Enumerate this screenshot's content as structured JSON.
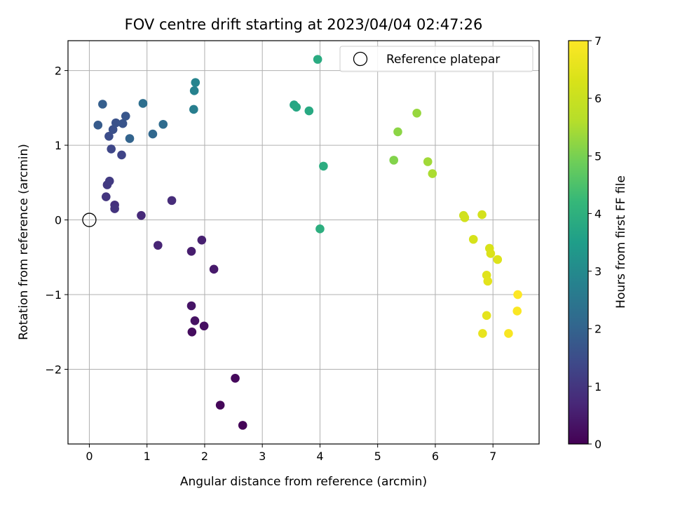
{
  "chart_data": {
    "type": "scatter",
    "title": "FOV centre drift starting at 2023/04/04 02:47:26",
    "xlabel": "Angular distance from reference (arcmin)",
    "ylabel": "Rotation from reference (arcmin)",
    "xlim": [
      -0.37,
      7.8
    ],
    "ylim": [
      -3.0,
      2.4
    ],
    "xticks": [
      0,
      1,
      2,
      3,
      4,
      5,
      6,
      7
    ],
    "xtick_labels": [
      "0",
      "1",
      "2",
      "3",
      "4",
      "5",
      "6",
      "7"
    ],
    "yticks": [
      -2,
      -1,
      0,
      1,
      2
    ],
    "ytick_labels": [
      "−2",
      "−1",
      "0",
      "1",
      "2"
    ],
    "grid": true,
    "colormap": "viridis",
    "colorbar": {
      "label": "Hours from first FF file",
      "range": [
        0,
        7
      ],
      "ticks": [
        0,
        1,
        2,
        3,
        4,
        5,
        6,
        7
      ],
      "tick_labels": [
        "0",
        "1",
        "2",
        "3",
        "4",
        "5",
        "6",
        "7"
      ]
    },
    "legend": {
      "position": "top-right",
      "entries": [
        "Reference platepar"
      ]
    },
    "reference_point": {
      "x": 0,
      "y": 0,
      "marker": "open-circle",
      "color": "#000000"
    },
    "points": [
      {
        "x": 2.66,
        "y": -2.75,
        "hours": 0.05
      },
      {
        "x": 2.27,
        "y": -2.48,
        "hours": 0.1
      },
      {
        "x": 2.53,
        "y": -2.12,
        "hours": 0.15
      },
      {
        "x": 1.78,
        "y": -1.5,
        "hours": 0.2
      },
      {
        "x": 1.99,
        "y": -1.42,
        "hours": 0.25
      },
      {
        "x": 1.83,
        "y": -1.35,
        "hours": 0.3
      },
      {
        "x": 1.77,
        "y": -1.15,
        "hours": 0.35
      },
      {
        "x": 2.16,
        "y": -0.66,
        "hours": 0.45
      },
      {
        "x": 1.77,
        "y": -0.42,
        "hours": 0.5
      },
      {
        "x": 1.95,
        "y": -0.27,
        "hours": 0.55
      },
      {
        "x": 1.19,
        "y": -0.34,
        "hours": 0.65
      },
      {
        "x": 0.9,
        "y": 0.06,
        "hours": 0.75
      },
      {
        "x": 1.43,
        "y": 0.26,
        "hours": 0.8
      },
      {
        "x": 0.44,
        "y": 0.2,
        "hours": 0.9
      },
      {
        "x": 0.44,
        "y": 0.15,
        "hours": 0.95
      },
      {
        "x": 0.29,
        "y": 0.31,
        "hours": 1.0
      },
      {
        "x": 0.31,
        "y": 0.47,
        "hours": 1.05
      },
      {
        "x": 0.35,
        "y": 0.52,
        "hours": 1.1
      },
      {
        "x": 0.56,
        "y": 0.87,
        "hours": 1.3
      },
      {
        "x": 0.38,
        "y": 0.95,
        "hours": 1.35
      },
      {
        "x": 0.34,
        "y": 1.12,
        "hours": 1.5
      },
      {
        "x": 0.41,
        "y": 1.21,
        "hours": 1.55
      },
      {
        "x": 0.46,
        "y": 1.3,
        "hours": 1.6
      },
      {
        "x": 0.58,
        "y": 1.29,
        "hours": 1.65
      },
      {
        "x": 0.63,
        "y": 1.39,
        "hours": 1.7
      },
      {
        "x": 0.15,
        "y": 1.27,
        "hours": 1.8
      },
      {
        "x": 0.23,
        "y": 1.55,
        "hours": 1.9
      },
      {
        "x": 0.7,
        "y": 1.09,
        "hours": 2.0
      },
      {
        "x": 1.1,
        "y": 1.15,
        "hours": 2.1
      },
      {
        "x": 1.28,
        "y": 1.28,
        "hours": 2.2
      },
      {
        "x": 0.93,
        "y": 1.56,
        "hours": 2.3
      },
      {
        "x": 1.81,
        "y": 1.48,
        "hours": 2.7
      },
      {
        "x": 1.82,
        "y": 1.73,
        "hours": 2.8
      },
      {
        "x": 1.84,
        "y": 1.84,
        "hours": 2.85
      },
      {
        "x": 3.55,
        "y": 1.54,
        "hours": 3.7
      },
      {
        "x": 3.59,
        "y": 1.51,
        "hours": 3.75
      },
      {
        "x": 3.81,
        "y": 1.46,
        "hours": 3.8
      },
      {
        "x": 3.96,
        "y": 2.15,
        "hours": 3.85
      },
      {
        "x": 4.06,
        "y": 0.72,
        "hours": 3.9
      },
      {
        "x": 4.0,
        "y": -0.12,
        "hours": 3.95
      },
      {
        "x": 5.28,
        "y": 0.8,
        "hours": 5.1
      },
      {
        "x": 5.35,
        "y": 1.18,
        "hours": 5.2
      },
      {
        "x": 5.68,
        "y": 1.43,
        "hours": 5.3
      },
      {
        "x": 5.87,
        "y": 0.78,
        "hours": 5.4
      },
      {
        "x": 5.95,
        "y": 0.62,
        "hours": 5.5
      },
      {
        "x": 6.49,
        "y": 0.06,
        "hours": 6.1
      },
      {
        "x": 6.51,
        "y": 0.03,
        "hours": 6.15
      },
      {
        "x": 6.81,
        "y": 0.07,
        "hours": 6.2
      },
      {
        "x": 6.66,
        "y": -0.26,
        "hours": 6.25
      },
      {
        "x": 6.94,
        "y": -0.38,
        "hours": 6.3
      },
      {
        "x": 6.96,
        "y": -0.45,
        "hours": 6.35
      },
      {
        "x": 7.08,
        "y": -0.53,
        "hours": 6.4
      },
      {
        "x": 6.89,
        "y": -0.74,
        "hours": 6.45
      },
      {
        "x": 6.91,
        "y": -0.82,
        "hours": 6.5
      },
      {
        "x": 6.89,
        "y": -1.28,
        "hours": 6.55
      },
      {
        "x": 6.82,
        "y": -1.52,
        "hours": 6.6
      },
      {
        "x": 7.27,
        "y": -1.52,
        "hours": 6.9
      },
      {
        "x": 7.42,
        "y": -1.22,
        "hours": 6.95
      },
      {
        "x": 7.43,
        "y": -1.0,
        "hours": 7.0
      }
    ]
  }
}
